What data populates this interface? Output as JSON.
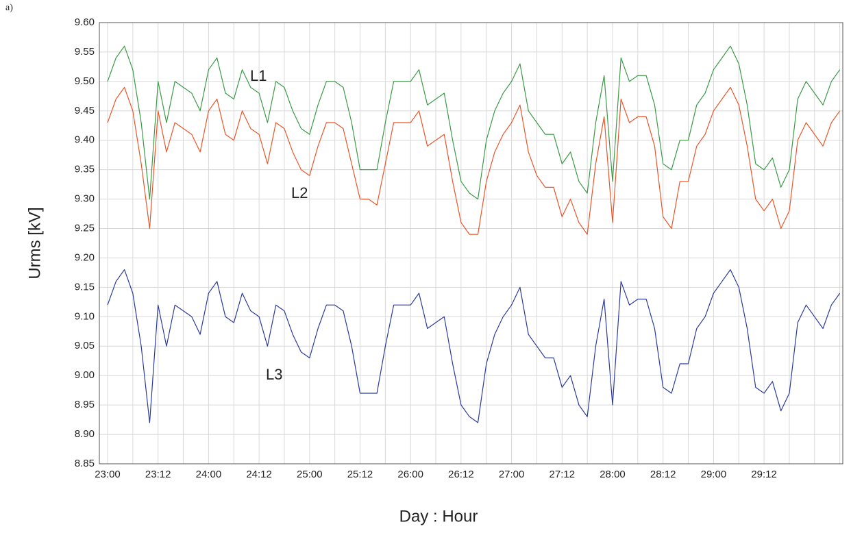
{
  "chart_data": {
    "type": "line",
    "panel_label": "a)",
    "x_label": "Day : Hour",
    "y_label": "Urms [kV]",
    "categories": [
      "23:00",
      null,
      null,
      null,
      null,
      null,
      "23:12",
      null,
      null,
      null,
      null,
      null,
      "24:00",
      null,
      null,
      null,
      null,
      null,
      "24:12",
      null,
      null,
      null,
      null,
      null,
      "25:00",
      null,
      null,
      null,
      null,
      null,
      "25:12",
      null,
      null,
      null,
      null,
      null,
      "26:00",
      null,
      null,
      null,
      null,
      null,
      "26:12",
      null,
      null,
      null,
      null,
      null,
      "27:00",
      null,
      null,
      null,
      null,
      null,
      "27:12",
      null,
      null,
      null,
      null,
      null,
      "28:00",
      null,
      null,
      null,
      null,
      null,
      "28:12",
      null,
      null,
      null,
      null,
      null,
      "29:00",
      null,
      null,
      null,
      null,
      null,
      "29:12",
      null,
      null,
      null,
      null,
      null,
      null,
      null,
      null,
      null
    ],
    "series": [
      {
        "name": "L1",
        "color": "#3a9a45",
        "values": [
          9.5,
          9.54,
          9.56,
          9.52,
          9.43,
          9.3,
          9.5,
          9.43,
          9.5,
          9.49,
          9.48,
          9.45,
          9.52,
          9.54,
          9.48,
          9.47,
          9.52,
          9.49,
          9.48,
          9.43,
          9.5,
          9.49,
          9.45,
          9.42,
          9.41,
          9.46,
          9.5,
          9.5,
          9.49,
          9.43,
          9.35,
          9.35,
          9.35,
          9.43,
          9.5,
          9.5,
          9.5,
          9.52,
          9.46,
          9.47,
          9.48,
          9.4,
          9.33,
          9.31,
          9.3,
          9.4,
          9.45,
          9.48,
          9.5,
          9.53,
          9.45,
          9.43,
          9.41,
          9.41,
          9.36,
          9.38,
          9.33,
          9.31,
          9.43,
          9.51,
          9.33,
          9.54,
          9.5,
          9.51,
          9.51,
          9.46,
          9.36,
          9.35,
          9.4,
          9.4,
          9.46,
          9.48,
          9.52,
          9.54,
          9.56,
          9.53,
          9.46,
          9.36,
          9.35,
          9.37,
          9.32,
          9.35,
          9.47,
          9.5,
          9.48,
          9.46,
          9.5,
          9.52
        ]
      },
      {
        "name": "L2",
        "color": "#e8552a",
        "values": [
          9.43,
          9.47,
          9.49,
          9.45,
          9.36,
          9.25,
          9.45,
          9.38,
          9.43,
          9.42,
          9.41,
          9.38,
          9.45,
          9.47,
          9.41,
          9.4,
          9.45,
          9.42,
          9.41,
          9.36,
          9.43,
          9.42,
          9.38,
          9.35,
          9.34,
          9.39,
          9.43,
          9.43,
          9.42,
          9.36,
          9.3,
          9.3,
          9.29,
          9.36,
          9.43,
          9.43,
          9.43,
          9.45,
          9.39,
          9.4,
          9.41,
          9.33,
          9.26,
          9.24,
          9.24,
          9.33,
          9.38,
          9.41,
          9.43,
          9.46,
          9.38,
          9.34,
          9.32,
          9.32,
          9.27,
          9.3,
          9.26,
          9.24,
          9.36,
          9.44,
          9.26,
          9.47,
          9.43,
          9.44,
          9.44,
          9.39,
          9.27,
          9.25,
          9.33,
          9.33,
          9.39,
          9.41,
          9.45,
          9.47,
          9.49,
          9.46,
          9.39,
          9.3,
          9.28,
          9.3,
          9.25,
          9.28,
          9.4,
          9.43,
          9.41,
          9.39,
          9.43,
          9.45
        ]
      },
      {
        "name": "L3",
        "color": "#2b3a9a",
        "values": [
          9.12,
          9.16,
          9.18,
          9.14,
          9.05,
          8.92,
          9.12,
          9.05,
          9.12,
          9.11,
          9.1,
          9.07,
          9.14,
          9.16,
          9.1,
          9.09,
          9.14,
          9.11,
          9.1,
          9.05,
          9.12,
          9.11,
          9.07,
          9.04,
          9.03,
          9.08,
          9.12,
          9.12,
          9.11,
          9.05,
          8.97,
          8.97,
          8.97,
          9.05,
          9.12,
          9.12,
          9.12,
          9.14,
          9.08,
          9.09,
          9.1,
          9.02,
          8.95,
          8.93,
          8.92,
          9.02,
          9.07,
          9.1,
          9.12,
          9.15,
          9.07,
          9.05,
          9.03,
          9.03,
          8.98,
          9.0,
          8.95,
          8.93,
          9.05,
          9.13,
          8.95,
          9.16,
          9.12,
          9.13,
          9.13,
          9.08,
          8.98,
          8.97,
          9.02,
          9.02,
          9.08,
          9.1,
          9.14,
          9.16,
          9.18,
          9.15,
          9.08,
          8.98,
          8.97,
          8.99,
          8.94,
          8.97,
          9.09,
          9.12,
          9.1,
          9.08,
          9.12,
          9.14
        ]
      }
    ],
    "ylim": [
      8.85,
      9.6
    ],
    "yticks": [
      {
        "value": 8.85,
        "label": "8.85"
      },
      {
        "value": 8.9,
        "label": "8.90"
      },
      8.95,
      {
        "value": 9.0,
        "label": "9.00"
      },
      9.05,
      {
        "value": 9.1,
        "label": "9.10"
      },
      9.15,
      {
        "value": 9.2,
        "label": "9.20"
      },
      9.25,
      {
        "value": 9.3,
        "label": "9.30"
      },
      9.35,
      {
        "value": 9.4,
        "label": "9.40"
      },
      9.45,
      {
        "value": 9.5,
        "label": "9.50"
      },
      9.55,
      {
        "value": 9.6,
        "label": "9.60"
      }
    ],
    "grid": true
  }
}
